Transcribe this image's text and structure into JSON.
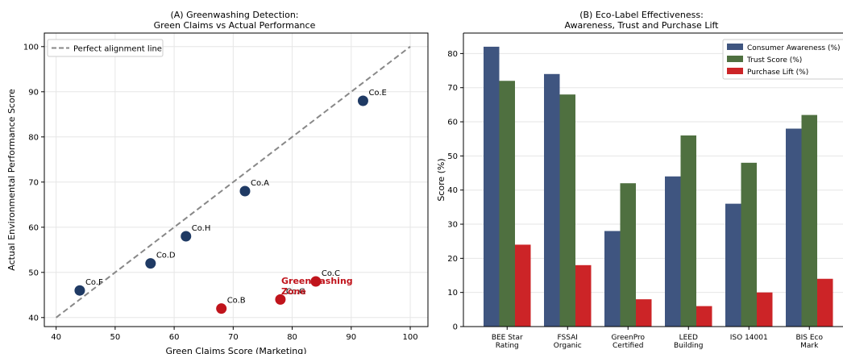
{
  "chart_data": [
    {
      "type": "scatter",
      "title_line1": "(A) Greenwashing Detection:",
      "title_line2": "Green Claims vs Actual Performance",
      "xlabel": "Green Claims Score (Marketing)",
      "ylabel": "Actual Environmental Performance Score",
      "xlim": [
        38,
        103
      ],
      "ylim": [
        38,
        103
      ],
      "xticks": [
        40,
        50,
        60,
        70,
        80,
        90,
        100
      ],
      "yticks": [
        40,
        50,
        60,
        70,
        80,
        90,
        100
      ],
      "grid": true,
      "legend": {
        "location": "top-left",
        "entries": [
          "Perfect alignment line"
        ]
      },
      "reference_line": {
        "x": [
          40,
          100
        ],
        "y": [
          40,
          100
        ],
        "color": "#888888"
      },
      "zone_label_line1": "Greenwashing",
      "zone_label_line2": "Zone",
      "colors": {
        "aligned": "#1f3a64",
        "greenwashing": "#c0141c"
      },
      "points": [
        {
          "label": "Co.A",
          "x": 72,
          "y": 68,
          "group": "aligned"
        },
        {
          "label": "Co.B",
          "x": 68,
          "y": 42,
          "group": "greenwashing"
        },
        {
          "label": "Co.C",
          "x": 84,
          "y": 48,
          "group": "greenwashing"
        },
        {
          "label": "Co.D",
          "x": 56,
          "y": 52,
          "group": "aligned"
        },
        {
          "label": "Co.E",
          "x": 92,
          "y": 88,
          "group": "aligned"
        },
        {
          "label": "Co.F",
          "x": 44,
          "y": 46,
          "group": "aligned"
        },
        {
          "label": "Co.G",
          "x": 78,
          "y": 44,
          "group": "greenwashing"
        },
        {
          "label": "Co.H",
          "x": 62,
          "y": 58,
          "group": "aligned"
        }
      ]
    },
    {
      "type": "bar",
      "title_line1": "(B) Eco-Label Effectiveness:",
      "title_line2": "Awareness, Trust and Purchase Lift",
      "xlabel": "",
      "ylabel": "Score (%)",
      "ylim": [
        0,
        86
      ],
      "yticks": [
        0,
        10,
        20,
        30,
        40,
        50,
        60,
        70,
        80
      ],
      "grid": true,
      "legend": {
        "location": "top-right"
      },
      "categories": [
        [
          "BEE Star",
          "Rating"
        ],
        [
          "FSSAI",
          "Organic"
        ],
        [
          "GreenPro",
          "Certified"
        ],
        [
          "LEED",
          "Building"
        ],
        [
          "ISO 14001"
        ],
        [
          "BIS Eco",
          "Mark"
        ]
      ],
      "series": [
        {
          "name": "Consumer Awareness (%)",
          "color": "#3f5580",
          "values": [
            82,
            74,
            28,
            44,
            36,
            58
          ]
        },
        {
          "name": "Trust Score (%)",
          "color": "#4f7040",
          "values": [
            72,
            68,
            42,
            56,
            48,
            62
          ]
        },
        {
          "name": "Purchase Lift (%)",
          "color": "#cc2427",
          "values": [
            24,
            18,
            8,
            6,
            10,
            14
          ]
        }
      ]
    }
  ]
}
